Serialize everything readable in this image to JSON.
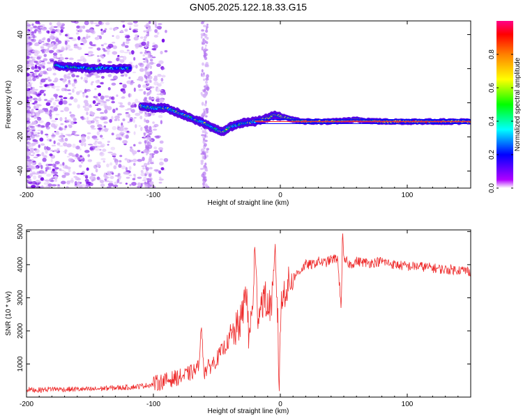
{
  "title": "GN05.2025.122.18.33.G15",
  "colors": {
    "snr_line": "#ee2a2a",
    "background": "#ffffff",
    "axis": "#000000"
  },
  "chart_data": [
    {
      "type": "heatmap",
      "title": "GN05.2025.122.18.33.G15",
      "xlabel": "Height of straight line (km)",
      "ylabel": "Frequency (Hz)",
      "xlim": [
        -200,
        150
      ],
      "ylim": [
        -50,
        48
      ],
      "x_ticks": [
        "-200",
        "-100",
        "0",
        "100"
      ],
      "y_ticks": [
        "40",
        "20",
        "0",
        "-20",
        "-40"
      ],
      "colorbar": {
        "label": "Normalized spectral amplitude",
        "range": [
          0,
          1
        ],
        "ticks": [
          "0.0",
          "0.2",
          "0.4",
          "0.6",
          "0.8"
        ],
        "colormap": [
          "#b000ff",
          "#0000ff",
          "#00ffff",
          "#00ff00",
          "#ffff00",
          "#ff8000",
          "#ff0000",
          "#ff00aa"
        ]
      },
      "ridges": [
        {
          "name": "upper track",
          "x": [
            -177,
            -170,
            -160,
            -150,
            -140,
            -130,
            -118
          ],
          "y": [
            22,
            21,
            21,
            20,
            20.5,
            20,
            20.5
          ],
          "amplitude": 0.45
        },
        {
          "name": "main track",
          "x": [
            -110,
            -100,
            -90,
            -80,
            -70,
            -60,
            -50,
            -45,
            -40,
            -30,
            -20,
            -10,
            -5,
            0,
            10,
            20,
            40,
            60,
            80,
            100,
            120,
            150
          ],
          "y": [
            -2,
            -3,
            -3,
            -6,
            -9,
            -12,
            -16,
            -17,
            -14,
            -12,
            -11,
            -9,
            -7,
            -8,
            -10,
            -11,
            -11,
            -10,
            -11,
            -11,
            -11,
            -11
          ],
          "amplitude": 0.55
        }
      ]
    },
    {
      "type": "line",
      "xlabel": "Height of straight line (km)",
      "ylabel": "SNR (10 * v/v)",
      "xlim": [
        -200,
        150
      ],
      "ylim": [
        0,
        5050
      ],
      "x_ticks": [
        "-200",
        "-100",
        "0",
        "100"
      ],
      "y_ticks": [
        "1000",
        "2000",
        "3000",
        "4000",
        "5000"
      ],
      "series": [
        {
          "x": [
            -200,
            -190,
            -180,
            -170,
            -160,
            -150,
            -140,
            -130,
            -120,
            -110,
            -100,
            -95,
            -90,
            -85,
            -80,
            -75,
            -70,
            -65,
            -62,
            -60,
            -58,
            -55,
            -50,
            -45,
            -40,
            -35,
            -30,
            -27,
            -25,
            -22,
            -20,
            -18,
            -15,
            -12,
            -10,
            -8,
            -6,
            -4,
            -2,
            -1,
            0,
            1,
            3,
            5,
            8,
            10,
            15,
            20,
            25,
            30,
            35,
            40,
            45,
            48,
            49,
            50,
            52,
            55,
            60,
            70,
            80,
            90,
            100,
            110,
            120,
            130,
            140,
            150
          ],
          "y": [
            200,
            180,
            220,
            200,
            210,
            200,
            230,
            250,
            260,
            300,
            350,
            400,
            450,
            500,
            550,
            600,
            700,
            800,
            2000,
            700,
            800,
            900,
            1100,
            1400,
            1700,
            2000,
            2400,
            3400,
            1800,
            2600,
            4500,
            2500,
            2900,
            3000,
            2700,
            2800,
            3000,
            4300,
            2400,
            100,
            2300,
            2800,
            3200,
            3300,
            3500,
            3600,
            3800,
            4000,
            4000,
            4100,
            4050,
            4150,
            4200,
            2700,
            5000,
            4100,
            4100,
            4000,
            4100,
            4050,
            4100,
            4000,
            3950,
            3950,
            3900,
            3850,
            3850,
            3800
          ]
        }
      ]
    }
  ]
}
